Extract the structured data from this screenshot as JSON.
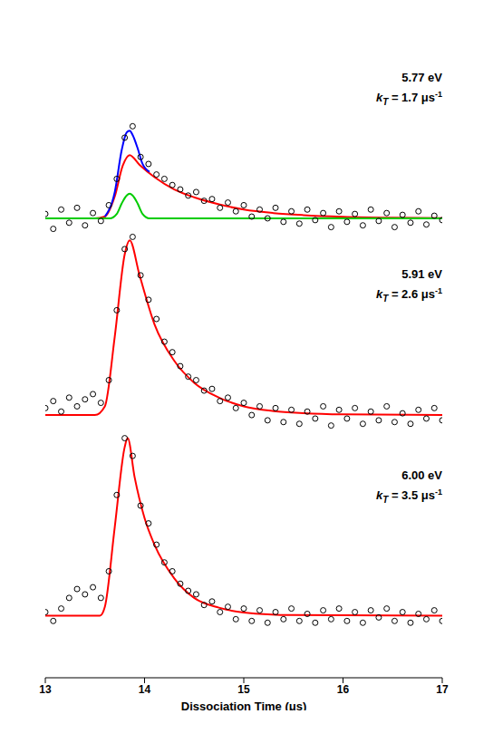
{
  "chart_data": [
    {
      "type": "scatter",
      "annotations": [
        "5.77 eV",
        "kT = 1.7 μs-1"
      ],
      "xlim": [
        13,
        17
      ],
      "xticks": [
        13,
        14,
        15,
        16,
        17
      ],
      "ylim": [
        -0.3,
        1.25
      ],
      "tick_labels": false,
      "series": [
        {
          "type": "scatter",
          "color": "#000000",
          "marker": "open_circle",
          "x": [
            13.0,
            13.08,
            13.16,
            13.24,
            13.32,
            13.4,
            13.48,
            13.56,
            13.64,
            13.72,
            13.8,
            13.88,
            13.96,
            14.04,
            14.12,
            14.2,
            14.28,
            14.36,
            14.44,
            14.52,
            14.6,
            14.68,
            14.76,
            14.84,
            14.92,
            15.0,
            15.08,
            15.16,
            15.24,
            15.32,
            15.4,
            15.48,
            15.56,
            15.64,
            15.72,
            15.8,
            15.88,
            15.96,
            16.04,
            16.12,
            16.2,
            16.28,
            16.36,
            16.44,
            16.52,
            16.6,
            16.68,
            16.76,
            16.84,
            16.92,
            17.0
          ],
          "values": [
            0.05,
            -0.12,
            0.1,
            -0.05,
            0.12,
            -0.08,
            0.06,
            -0.03,
            0.15,
            0.45,
            0.92,
            1.05,
            0.7,
            0.62,
            0.5,
            0.45,
            0.38,
            0.33,
            0.26,
            0.3,
            0.2,
            0.22,
            0.12,
            0.18,
            0.08,
            0.15,
            0.02,
            0.1,
            0.0,
            0.12,
            -0.04,
            0.08,
            -0.06,
            0.1,
            -0.02,
            0.06,
            -0.1,
            0.08,
            -0.04,
            0.05,
            -0.08,
            0.1,
            -0.03,
            0.06,
            -0.1,
            0.04,
            -0.05,
            0.08,
            -0.07,
            0.03,
            -0.02
          ]
        },
        {
          "type": "line",
          "color": "#ff0000",
          "x": [
            13.0,
            13.5,
            13.6,
            13.7,
            13.78,
            13.85,
            13.95,
            14.1,
            14.3,
            14.5,
            14.75,
            15.0,
            15.3,
            15.6,
            16.0,
            16.5,
            17.0
          ],
          "values": [
            0,
            0,
            0.02,
            0.25,
            0.6,
            0.72,
            0.61,
            0.47,
            0.33,
            0.24,
            0.16,
            0.1,
            0.06,
            0.037,
            0.019,
            0.008,
            0.003
          ]
        },
        {
          "type": "line",
          "color": "#0000ff",
          "x": [
            13.6,
            13.7,
            13.77,
            13.82,
            13.85,
            13.88,
            13.93,
            13.98,
            14.05
          ],
          "values": [
            0.02,
            0.3,
            0.78,
            0.98,
            1.0,
            0.95,
            0.8,
            0.62,
            0.53
          ]
        },
        {
          "type": "line",
          "color": "#00cc00",
          "x": [
            13.0,
            13.65,
            13.72,
            13.77,
            13.82,
            13.85,
            13.88,
            13.93,
            13.98,
            14.05,
            17.0
          ],
          "values": [
            0,
            0,
            0.05,
            0.17,
            0.26,
            0.28,
            0.26,
            0.17,
            0.05,
            0,
            0
          ]
        }
      ]
    },
    {
      "type": "scatter",
      "annotations": [
        "5.91 eV",
        "kT = 2.6 μs-1"
      ],
      "xlim": [
        13,
        17
      ],
      "xticks": [
        13,
        14,
        15,
        16,
        17
      ],
      "ylim": [
        -0.15,
        1.1
      ],
      "tick_labels": false,
      "series": [
        {
          "type": "scatter",
          "color": "#000000",
          "marker": "open_circle",
          "x": [
            13.0,
            13.08,
            13.16,
            13.24,
            13.32,
            13.4,
            13.48,
            13.56,
            13.64,
            13.72,
            13.8,
            13.88,
            13.96,
            14.04,
            14.12,
            14.2,
            14.28,
            14.36,
            14.44,
            14.52,
            14.6,
            14.68,
            14.76,
            14.84,
            14.92,
            15.0,
            15.08,
            15.16,
            15.24,
            15.32,
            15.4,
            15.48,
            15.56,
            15.64,
            15.72,
            15.8,
            15.88,
            15.96,
            16.04,
            16.12,
            16.2,
            16.28,
            16.36,
            16.44,
            16.52,
            16.6,
            16.68,
            16.76,
            16.84,
            16.92,
            17.0
          ],
          "values": [
            0.04,
            0.08,
            0.02,
            0.1,
            0.05,
            0.09,
            0.12,
            0.07,
            0.2,
            0.6,
            0.95,
            1.02,
            0.8,
            0.66,
            0.55,
            0.42,
            0.36,
            0.28,
            0.22,
            0.2,
            0.14,
            0.15,
            0.08,
            0.1,
            0.04,
            0.07,
            0.0,
            0.05,
            -0.03,
            0.04,
            -0.04,
            0.03,
            -0.05,
            0.02,
            -0.02,
            0.05,
            -0.06,
            0.03,
            -0.02,
            0.04,
            -0.05,
            0.02,
            -0.03,
            0.05,
            -0.04,
            0.01,
            -0.05,
            0.03,
            -0.02,
            0.04,
            -0.03
          ]
        },
        {
          "type": "line",
          "color": "#ff0000",
          "x": [
            13.0,
            13.5,
            13.6,
            13.7,
            13.8,
            13.85,
            13.95,
            14.1,
            14.3,
            14.5,
            14.75,
            15.0,
            15.3,
            15.6,
            16.0,
            17.0
          ],
          "values": [
            0,
            0,
            0.05,
            0.45,
            0.92,
            1.0,
            0.8,
            0.52,
            0.31,
            0.185,
            0.1,
            0.05,
            0.023,
            0.011,
            0.004,
            0
          ]
        }
      ]
    },
    {
      "type": "scatter",
      "annotations": [
        "6.00 eV",
        "kT = 3.5 μs-1"
      ],
      "xlim": [
        13,
        17
      ],
      "xticks": [
        13,
        14,
        15,
        16,
        17
      ],
      "ylim": [
        -0.35,
        1.1
      ],
      "tick_labels": "x",
      "x_label": "Dissociation Time (μs)",
      "series": [
        {
          "type": "scatter",
          "color": "#000000",
          "marker": "open_circle",
          "x": [
            13.0,
            13.08,
            13.16,
            13.24,
            13.32,
            13.4,
            13.48,
            13.56,
            13.64,
            13.72,
            13.8,
            13.88,
            13.96,
            14.04,
            14.12,
            14.2,
            14.28,
            14.36,
            14.44,
            14.52,
            14.6,
            14.68,
            14.76,
            14.84,
            14.92,
            15.0,
            15.08,
            15.16,
            15.24,
            15.32,
            15.4,
            15.48,
            15.56,
            15.64,
            15.72,
            15.8,
            15.88,
            15.96,
            16.04,
            16.12,
            16.2,
            16.28,
            16.36,
            16.44,
            16.52,
            16.6,
            16.68,
            16.76,
            16.84,
            16.92,
            17.0
          ],
          "values": [
            0.02,
            -0.03,
            0.04,
            0.1,
            0.15,
            0.12,
            0.16,
            0.1,
            0.25,
            0.68,
            1.0,
            0.9,
            0.62,
            0.52,
            0.4,
            0.3,
            0.25,
            0.18,
            0.14,
            0.12,
            0.06,
            0.08,
            0.02,
            0.05,
            -0.02,
            0.04,
            -0.03,
            0.03,
            -0.04,
            0.02,
            -0.02,
            0.04,
            -0.03,
            0.01,
            -0.04,
            0.03,
            -0.02,
            0.04,
            -0.03,
            0.02,
            -0.04,
            0.03,
            -0.01,
            0.04,
            -0.03,
            0.02,
            -0.04,
            0.01,
            -0.02,
            0.03,
            -0.03
          ]
        },
        {
          "type": "line",
          "color": "#ff0000",
          "x": [
            13.0,
            13.55,
            13.6,
            13.7,
            13.8,
            13.83,
            13.9,
            14.0,
            14.1,
            14.3,
            14.5,
            14.75,
            15.0,
            15.5,
            17.0
          ],
          "values": [
            0,
            0,
            0.05,
            0.5,
            0.95,
            1.0,
            0.78,
            0.55,
            0.4,
            0.21,
            0.1,
            0.045,
            0.018,
            0.003,
            0
          ]
        }
      ]
    }
  ]
}
